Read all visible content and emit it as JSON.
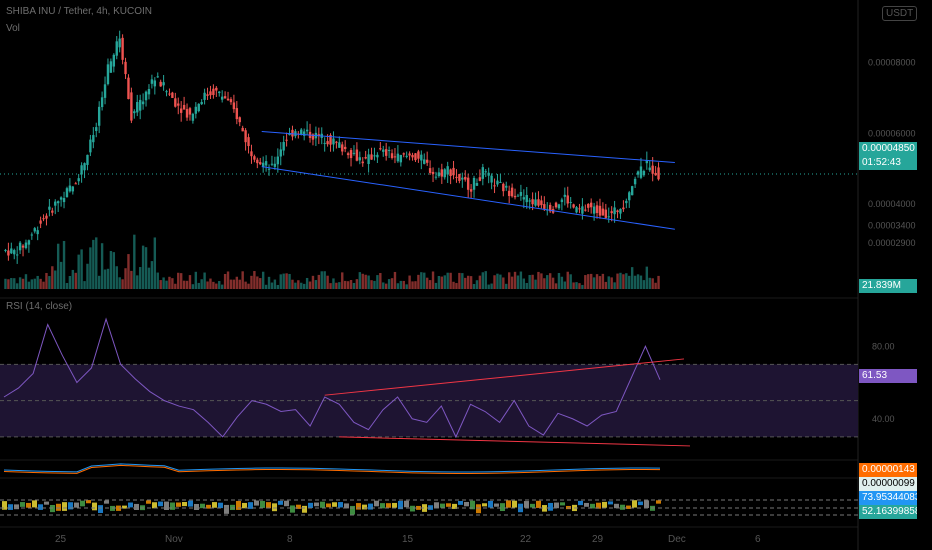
{
  "header": {
    "symbol_line": "SHIBA INU / Tether, 4h, KUCOIN",
    "vol_label": "Vol",
    "rsi_label": "RSI (14, close)",
    "currency_badge": "USDT"
  },
  "colors": {
    "up": "#26a69a",
    "down": "#ef5350",
    "trendline_price": "#2962ff",
    "trendline_rsi": "#f23645",
    "rsi_line": "#7e57c2",
    "rsi_band": "#1e1432",
    "macd": "#2196f3",
    "signal": "#ff6d00"
  },
  "price_panel": {
    "current_price": "0.00004850",
    "countdown": "01:52:43",
    "volume_value": "21.839M"
  },
  "rsi_panel": {
    "value_tag": "61.53"
  },
  "lower_panels": {
    "orange_tag": "0.00000143",
    "white_tag": "0.00000099",
    "blue_tag": "73.95344083",
    "green_tag": "52.16399858"
  },
  "chart_data": [
    {
      "type": "candlestick",
      "title": "SHIBA INU / Tether, 4h, KUCOIN",
      "ylim": [
        1.8e-05,
        9.2e-05
      ],
      "y_ticks": [
        "0.00008000",
        "0.00006000",
        "0.00004000",
        "0.00003400",
        "0.00002900"
      ],
      "x_ticks": [
        "25",
        "Nov",
        "8",
        "15",
        "22",
        "29",
        "Dec",
        "6"
      ],
      "close_series": [
        2.7e-05,
        2.65e-05,
        2.9e-05,
        3.4e-05,
        3.8e-05,
        4.2e-05,
        4.5e-05,
        5.2e-05,
        6.2e-05,
        7.8e-05,
        8.7e-05,
        6.5e-05,
        7e-05,
        7.6e-05,
        7.2e-05,
        6.8e-05,
        6.5e-05,
        7e-05,
        7.2e-05,
        7e-05,
        6.5e-05,
        5.6e-05,
        5.2e-05,
        5e-05,
        5.8e-05,
        6.1e-05,
        6e-05,
        5.9e-05,
        5.8e-05,
        5.6e-05,
        5.4e-05,
        5.2e-05,
        5.5e-05,
        5.4e-05,
        5.3e-05,
        5.4e-05,
        5.2e-05,
        4.8e-05,
        5e-05,
        4.7e-05,
        4.5e-05,
        4.9e-05,
        4.6e-05,
        4.4e-05,
        4.3e-05,
        4.1e-05,
        4e-05,
        3.9e-05,
        4.2e-05,
        3.8e-05,
        3.9e-05,
        3.8e-05,
        3.7e-05,
        4e-05,
        4.8e-05,
        5.1e-05,
        4.85e-05
      ],
      "annotations": [
        "falling wedge (2 trendlines)"
      ]
    },
    {
      "type": "line",
      "title": "RSI (14, close)",
      "ylim": [
        20,
        100
      ],
      "y_ticks": [
        "80.00",
        "40.00"
      ],
      "band": [
        30,
        70
      ],
      "series": [
        {
          "values": [
            52,
            57,
            65,
            92,
            75,
            60,
            68,
            95,
            70,
            62,
            55,
            50,
            47,
            45,
            38,
            30,
            41,
            50,
            48,
            44,
            45,
            36,
            52,
            48,
            38,
            34,
            45,
            52,
            40,
            38,
            47,
            30,
            48,
            44,
            38,
            50,
            36,
            31,
            43,
            40,
            36,
            42,
            44,
            62,
            80,
            61.53
          ]
        }
      ],
      "annotations": [
        "rising trendline on highs",
        "trendline on lows"
      ]
    }
  ]
}
